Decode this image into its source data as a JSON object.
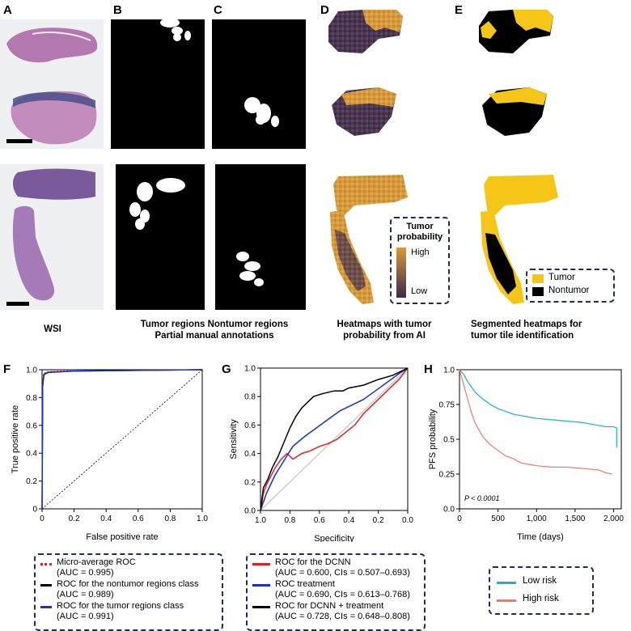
{
  "panels": {
    "A": "A",
    "B": "B",
    "C": "C",
    "D": "D",
    "E": "E",
    "F": "F",
    "G": "G",
    "H": "H"
  },
  "captions": {
    "wsi": "WSI",
    "annot_line1": "Tumor regions Nontumor regions",
    "annot_line2": "Partial manual annotations",
    "heat_line1": "Heatmaps with tumor",
    "heat_line2": "probability from AI",
    "seg_line1": "Segmented heatmaps for",
    "seg_line2": "tumor tile identification"
  },
  "heat_legend": {
    "title1": "Tumor",
    "title2": "probability",
    "high": "High",
    "low": "Low"
  },
  "seg_legend": {
    "tumor": "Tumor",
    "nontumor": "Nontumor"
  },
  "colors": {
    "tumor": "#f5c518",
    "nontumor": "#000000",
    "heat_high": "#d89a3a",
    "heat_low": "#3b2a4a",
    "navy": "#1f2f50",
    "wsi_bg": "#eef0f2",
    "tissue": "#b478b0"
  },
  "chart_data": [
    {
      "panel": "F",
      "type": "line",
      "xlabel": "False positive rate",
      "ylabel": "True positive rate",
      "xlim": [
        0,
        1
      ],
      "ylim": [
        0,
        1
      ],
      "xticks": [
        "0",
        "0.2",
        "0.4",
        "0.6",
        "0.8",
        "1.0"
      ],
      "yticks": [
        "0",
        "0.2",
        "0.4",
        "0.6",
        "0.8",
        "1.0"
      ],
      "series": [
        {
          "name": "Micro-average ROC",
          "auc": "(AUC = 0.995)",
          "color": "#e02020",
          "dash": "dotted",
          "x": [
            0,
            0.003,
            0.01,
            0.03,
            0.1,
            1
          ],
          "y": [
            0,
            0.9,
            0.97,
            0.985,
            0.99,
            1
          ]
        },
        {
          "name": "ROC for the nontumor regions class",
          "auc": "(AUC = 0.989)",
          "color": "#000000",
          "dash": "solid",
          "x": [
            0,
            0.004,
            0.012,
            0.04,
            0.2,
            1
          ],
          "y": [
            0,
            0.88,
            0.965,
            0.98,
            0.99,
            1
          ]
        },
        {
          "name": "ROC for the tumor regions class",
          "auc": "(AUC = 0.991)",
          "color": "#1a2fd0",
          "dash": "solid",
          "x": [
            0,
            0.004,
            0.012,
            0.04,
            0.2,
            1
          ],
          "y": [
            0,
            0.89,
            0.97,
            0.982,
            0.99,
            1
          ]
        }
      ],
      "diagonal": true
    },
    {
      "panel": "G",
      "type": "line",
      "xlabel": "Specificity",
      "ylabel": "Sensitivity",
      "xlim": [
        1.0,
        0.0
      ],
      "ylim": [
        0,
        1
      ],
      "xticks": [
        "1.0",
        "0.8",
        "0.6",
        "0.4",
        "0.2",
        "0.0"
      ],
      "yticks": [
        "0.0",
        "0.2",
        "0.4",
        "0.6",
        "0.8",
        "1.0"
      ],
      "series": [
        {
          "name": "ROC for the DCNN",
          "auc": "(AUC = 0.600, CIs = 0.507–0.693)",
          "color": "#e02020",
          "spec": [
            1.0,
            0.98,
            0.96,
            0.94,
            0.9,
            0.86,
            0.82,
            0.78,
            0.72,
            0.66,
            0.6,
            0.54,
            0.48,
            0.42,
            0.36,
            0.3,
            0.24,
            0.18,
            0.12,
            0.06,
            0.0
          ],
          "sens": [
            0.0,
            0.12,
            0.18,
            0.22,
            0.3,
            0.36,
            0.4,
            0.36,
            0.4,
            0.42,
            0.45,
            0.47,
            0.5,
            0.55,
            0.6,
            0.68,
            0.74,
            0.8,
            0.86,
            0.92,
            1.0
          ]
        },
        {
          "name": "ROC treatment",
          "auc": "(AUC = 0.690, CIs = 0.613–0.768)",
          "color": "#1a2fd0",
          "spec": [
            1.0,
            0.96,
            0.9,
            0.84,
            0.78,
            0.7,
            0.62,
            0.54,
            0.46,
            0.38,
            0.3,
            0.22,
            0.14,
            0.06,
            0.0
          ],
          "sens": [
            0.0,
            0.12,
            0.25,
            0.35,
            0.45,
            0.52,
            0.58,
            0.64,
            0.7,
            0.74,
            0.78,
            0.84,
            0.9,
            0.96,
            1.0
          ]
        },
        {
          "name": "ROC for DCNN + treatment",
          "auc": "(AUC = 0.728, CIs = 0.648–0.808)",
          "color": "#000000",
          "spec": [
            1.0,
            0.98,
            0.95,
            0.92,
            0.88,
            0.84,
            0.8,
            0.76,
            0.72,
            0.68,
            0.64,
            0.58,
            0.5,
            0.44,
            0.4,
            0.3,
            0.2,
            0.1,
            0.04,
            0.0
          ],
          "sens": [
            0.0,
            0.16,
            0.22,
            0.3,
            0.38,
            0.48,
            0.58,
            0.66,
            0.72,
            0.76,
            0.8,
            0.82,
            0.84,
            0.84,
            0.86,
            0.88,
            0.92,
            0.95,
            0.98,
            1.0
          ]
        }
      ],
      "diagonal": true
    },
    {
      "panel": "H",
      "type": "line",
      "xlabel": "Time (days)",
      "ylabel": "PFS probability",
      "xlim": [
        0,
        2100
      ],
      "ylim": [
        0,
        1
      ],
      "xticks": [
        "0",
        "500",
        "1,000",
        "1,500",
        "2,000"
      ],
      "xtick_values": [
        0,
        500,
        1000,
        1500,
        2000
      ],
      "yticks": [
        "0.0",
        "0.25",
        "0.5",
        "0.75",
        "1.0"
      ],
      "ytick_values": [
        0,
        0.25,
        0.5,
        0.75,
        1.0
      ],
      "annotation": "P < 0.0001",
      "series": [
        {
          "name": "Low risk",
          "color": "#19b5bd",
          "x": [
            0,
            50,
            100,
            150,
            200,
            300,
            400,
            500,
            600,
            700,
            800,
            900,
            1000,
            1200,
            1400,
            1600,
            1800,
            1900,
            2000,
            2040,
            2040
          ],
          "y": [
            1.0,
            0.97,
            0.92,
            0.88,
            0.84,
            0.79,
            0.75,
            0.72,
            0.7,
            0.68,
            0.67,
            0.66,
            0.65,
            0.64,
            0.63,
            0.62,
            0.6,
            0.59,
            0.59,
            0.58,
            0.44
          ]
        },
        {
          "name": "High risk",
          "color": "#f07a6a",
          "x": [
            0,
            50,
            100,
            150,
            200,
            300,
            400,
            500,
            600,
            700,
            800,
            900,
            1000,
            1200,
            1400,
            1600,
            1800,
            1900,
            1980
          ],
          "y": [
            1.0,
            0.9,
            0.8,
            0.7,
            0.62,
            0.52,
            0.46,
            0.42,
            0.38,
            0.36,
            0.33,
            0.32,
            0.31,
            0.3,
            0.3,
            0.29,
            0.28,
            0.26,
            0.25
          ]
        }
      ]
    }
  ]
}
